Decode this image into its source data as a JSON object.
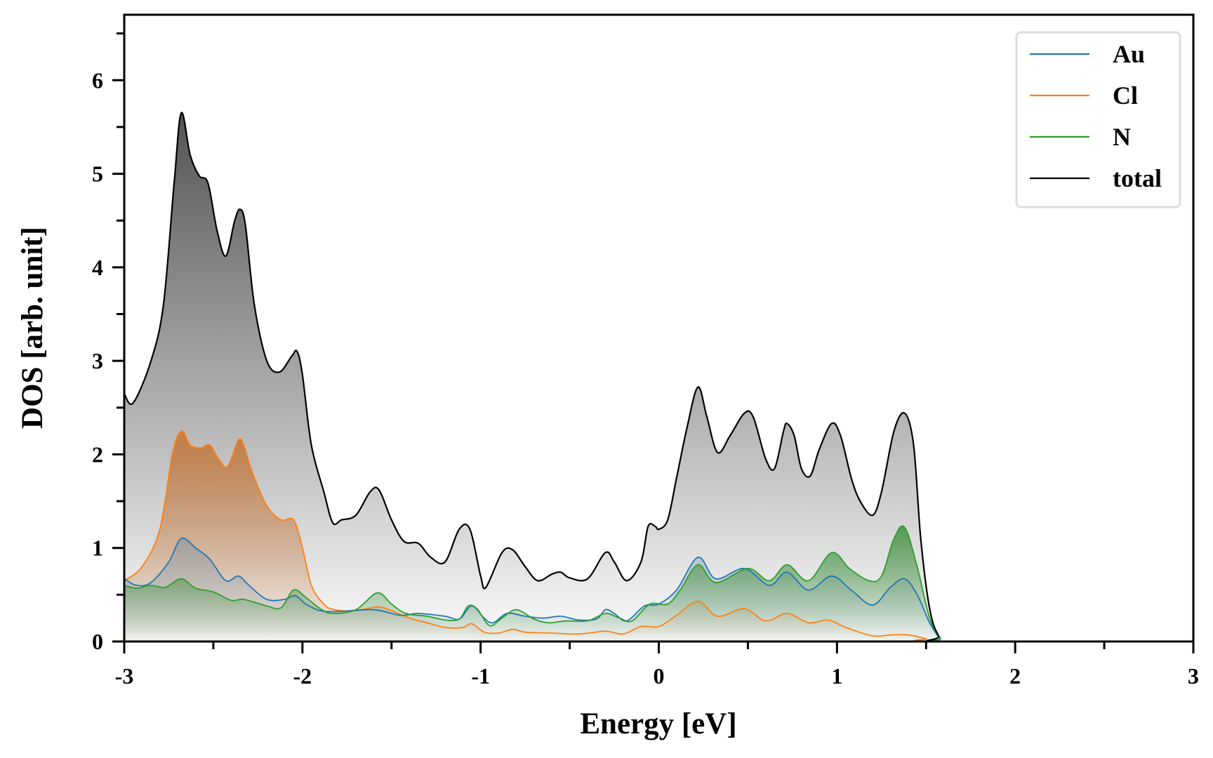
{
  "chart_data": {
    "type": "area",
    "title": "",
    "xlabel": "Energy [eV]",
    "ylabel": "DOS [arb. unit]",
    "xlim": [
      -3,
      3
    ],
    "ylim": [
      0,
      6.7
    ],
    "xticks": [
      -3,
      -2,
      -1,
      0,
      1,
      2,
      3
    ],
    "yticks": [
      0,
      1,
      2,
      3,
      4,
      5,
      6
    ],
    "legend_position": "top-right",
    "grid": false,
    "series": [
      {
        "name": "Au",
        "color": "#1f77b4",
        "fill": "#6f8fa5",
        "points": [
          [
            -3,
            0.67
          ],
          [
            -2.93,
            0.6
          ],
          [
            -2.85,
            0.63
          ],
          [
            -2.75,
            0.85
          ],
          [
            -2.68,
            1.1
          ],
          [
            -2.6,
            1.0
          ],
          [
            -2.52,
            0.88
          ],
          [
            -2.43,
            0.65
          ],
          [
            -2.36,
            0.7
          ],
          [
            -2.3,
            0.6
          ],
          [
            -2.2,
            0.45
          ],
          [
            -2.1,
            0.45
          ],
          [
            -2.04,
            0.49
          ],
          [
            -1.98,
            0.4
          ],
          [
            -1.9,
            0.33
          ],
          [
            -1.8,
            0.32
          ],
          [
            -1.6,
            0.34
          ],
          [
            -1.45,
            0.28
          ],
          [
            -1.35,
            0.3
          ],
          [
            -1.2,
            0.27
          ],
          [
            -1.12,
            0.24
          ],
          [
            -1.05,
            0.38
          ],
          [
            -0.98,
            0.25
          ],
          [
            -0.93,
            0.2
          ],
          [
            -0.85,
            0.3
          ],
          [
            -0.75,
            0.27
          ],
          [
            -0.65,
            0.25
          ],
          [
            -0.55,
            0.27
          ],
          [
            -0.45,
            0.23
          ],
          [
            -0.35,
            0.24
          ],
          [
            -0.3,
            0.34
          ],
          [
            -0.25,
            0.3
          ],
          [
            -0.18,
            0.22
          ],
          [
            -0.08,
            0.38
          ],
          [
            0,
            0.4
          ],
          [
            0.1,
            0.55
          ],
          [
            0.22,
            0.9
          ],
          [
            0.32,
            0.67
          ],
          [
            0.48,
            0.78
          ],
          [
            0.62,
            0.6
          ],
          [
            0.72,
            0.74
          ],
          [
            0.84,
            0.55
          ],
          [
            0.97,
            0.7
          ],
          [
            1.08,
            0.55
          ],
          [
            1.2,
            0.39
          ],
          [
            1.3,
            0.58
          ],
          [
            1.38,
            0.67
          ],
          [
            1.45,
            0.5
          ],
          [
            1.52,
            0.2
          ],
          [
            1.58,
            0.03
          ],
          [
            1.62,
            0
          ],
          [
            3,
            0
          ]
        ]
      },
      {
        "name": "Cl",
        "color": "#ff7f0e",
        "fill": "#c2763a",
        "points": [
          [
            -3,
            0.65
          ],
          [
            -2.9,
            0.8
          ],
          [
            -2.8,
            1.2
          ],
          [
            -2.73,
            2.0
          ],
          [
            -2.68,
            2.25
          ],
          [
            -2.63,
            2.1
          ],
          [
            -2.57,
            2.07
          ],
          [
            -2.52,
            2.1
          ],
          [
            -2.47,
            1.95
          ],
          [
            -2.42,
            1.87
          ],
          [
            -2.36,
            2.15
          ],
          [
            -2.33,
            2.1
          ],
          [
            -2.28,
            1.8
          ],
          [
            -2.2,
            1.45
          ],
          [
            -2.12,
            1.3
          ],
          [
            -2.05,
            1.3
          ],
          [
            -2.0,
            1.0
          ],
          [
            -1.95,
            0.6
          ],
          [
            -1.88,
            0.4
          ],
          [
            -1.82,
            0.34
          ],
          [
            -1.7,
            0.33
          ],
          [
            -1.58,
            0.37
          ],
          [
            -1.5,
            0.33
          ],
          [
            -1.4,
            0.25
          ],
          [
            -1.3,
            0.2
          ],
          [
            -1.2,
            0.15
          ],
          [
            -1.1,
            0.15
          ],
          [
            -1.05,
            0.19
          ],
          [
            -0.98,
            0.1
          ],
          [
            -0.9,
            0.09
          ],
          [
            -0.82,
            0.13
          ],
          [
            -0.75,
            0.1
          ],
          [
            -0.6,
            0.09
          ],
          [
            -0.45,
            0.08
          ],
          [
            -0.3,
            0.11
          ],
          [
            -0.2,
            0.08
          ],
          [
            -0.1,
            0.16
          ],
          [
            0,
            0.16
          ],
          [
            0.1,
            0.28
          ],
          [
            0.22,
            0.43
          ],
          [
            0.33,
            0.27
          ],
          [
            0.48,
            0.35
          ],
          [
            0.6,
            0.22
          ],
          [
            0.72,
            0.3
          ],
          [
            0.84,
            0.2
          ],
          [
            0.95,
            0.23
          ],
          [
            1.05,
            0.15
          ],
          [
            1.2,
            0.06
          ],
          [
            1.3,
            0.07
          ],
          [
            1.4,
            0.07
          ],
          [
            1.5,
            0.03
          ],
          [
            1.55,
            0
          ],
          [
            3,
            0
          ]
        ]
      },
      {
        "name": "N",
        "color": "#2ca02c",
        "fill": "#3f8f3f",
        "points": [
          [
            -3,
            0.6
          ],
          [
            -2.93,
            0.57
          ],
          [
            -2.85,
            0.6
          ],
          [
            -2.77,
            0.58
          ],
          [
            -2.68,
            0.67
          ],
          [
            -2.6,
            0.57
          ],
          [
            -2.5,
            0.53
          ],
          [
            -2.4,
            0.44
          ],
          [
            -2.33,
            0.45
          ],
          [
            -2.2,
            0.38
          ],
          [
            -2.12,
            0.36
          ],
          [
            -2.05,
            0.55
          ],
          [
            -1.98,
            0.47
          ],
          [
            -1.9,
            0.35
          ],
          [
            -1.83,
            0.3
          ],
          [
            -1.7,
            0.34
          ],
          [
            -1.58,
            0.52
          ],
          [
            -1.5,
            0.4
          ],
          [
            -1.42,
            0.3
          ],
          [
            -1.3,
            0.27
          ],
          [
            -1.2,
            0.23
          ],
          [
            -1.12,
            0.24
          ],
          [
            -1.07,
            0.38
          ],
          [
            -1.02,
            0.35
          ],
          [
            -0.95,
            0.17
          ],
          [
            -0.88,
            0.25
          ],
          [
            -0.8,
            0.34
          ],
          [
            -0.7,
            0.24
          ],
          [
            -0.62,
            0.2
          ],
          [
            -0.52,
            0.22
          ],
          [
            -0.4,
            0.22
          ],
          [
            -0.3,
            0.3
          ],
          [
            -0.22,
            0.25
          ],
          [
            -0.15,
            0.22
          ],
          [
            -0.05,
            0.4
          ],
          [
            0.05,
            0.4
          ],
          [
            0.12,
            0.55
          ],
          [
            0.22,
            0.82
          ],
          [
            0.32,
            0.63
          ],
          [
            0.5,
            0.78
          ],
          [
            0.62,
            0.65
          ],
          [
            0.72,
            0.82
          ],
          [
            0.84,
            0.65
          ],
          [
            0.97,
            0.95
          ],
          [
            1.07,
            0.78
          ],
          [
            1.18,
            0.65
          ],
          [
            1.25,
            0.7
          ],
          [
            1.32,
            1.1
          ],
          [
            1.38,
            1.22
          ],
          [
            1.45,
            0.8
          ],
          [
            1.52,
            0.25
          ],
          [
            1.58,
            0.04
          ],
          [
            1.63,
            0
          ],
          [
            3,
            0
          ]
        ]
      },
      {
        "name": "total",
        "color": "#000000",
        "fill": "#4a4a4a",
        "points": [
          [
            -3,
            2.65
          ],
          [
            -2.95,
            2.55
          ],
          [
            -2.85,
            3.0
          ],
          [
            -2.78,
            3.6
          ],
          [
            -2.72,
            4.9
          ],
          [
            -2.68,
            5.65
          ],
          [
            -2.63,
            5.2
          ],
          [
            -2.58,
            4.98
          ],
          [
            -2.53,
            4.9
          ],
          [
            -2.48,
            4.4
          ],
          [
            -2.43,
            4.12
          ],
          [
            -2.38,
            4.5
          ],
          [
            -2.35,
            4.62
          ],
          [
            -2.32,
            4.45
          ],
          [
            -2.27,
            3.6
          ],
          [
            -2.2,
            3.0
          ],
          [
            -2.13,
            2.88
          ],
          [
            -2.06,
            3.05
          ],
          [
            -2.03,
            3.1
          ],
          [
            -2.0,
            2.85
          ],
          [
            -1.95,
            2.1
          ],
          [
            -1.88,
            1.6
          ],
          [
            -1.83,
            1.27
          ],
          [
            -1.78,
            1.3
          ],
          [
            -1.7,
            1.35
          ],
          [
            -1.62,
            1.6
          ],
          [
            -1.57,
            1.62
          ],
          [
            -1.5,
            1.3
          ],
          [
            -1.43,
            1.07
          ],
          [
            -1.35,
            1.05
          ],
          [
            -1.28,
            0.9
          ],
          [
            -1.2,
            0.85
          ],
          [
            -1.12,
            1.2
          ],
          [
            -1.06,
            1.2
          ],
          [
            -1.0,
            0.7
          ],
          [
            -0.97,
            0.58
          ],
          [
            -0.88,
            0.95
          ],
          [
            -0.82,
            0.98
          ],
          [
            -0.75,
            0.8
          ],
          [
            -0.68,
            0.65
          ],
          [
            -0.6,
            0.72
          ],
          [
            -0.55,
            0.74
          ],
          [
            -0.5,
            0.68
          ],
          [
            -0.4,
            0.67
          ],
          [
            -0.3,
            0.95
          ],
          [
            -0.25,
            0.85
          ],
          [
            -0.18,
            0.65
          ],
          [
            -0.1,
            0.85
          ],
          [
            -0.06,
            1.23
          ],
          [
            -0.02,
            1.23
          ],
          [
            0,
            1.2
          ],
          [
            0.05,
            1.3
          ],
          [
            0.1,
            1.75
          ],
          [
            0.16,
            2.3
          ],
          [
            0.22,
            2.72
          ],
          [
            0.27,
            2.4
          ],
          [
            0.33,
            2.02
          ],
          [
            0.4,
            2.2
          ],
          [
            0.48,
            2.44
          ],
          [
            0.53,
            2.4
          ],
          [
            0.6,
            1.95
          ],
          [
            0.65,
            1.85
          ],
          [
            0.7,
            2.25
          ],
          [
            0.72,
            2.33
          ],
          [
            0.76,
            2.2
          ],
          [
            0.8,
            1.85
          ],
          [
            0.85,
            1.77
          ],
          [
            0.9,
            2.05
          ],
          [
            0.97,
            2.33
          ],
          [
            1.02,
            2.2
          ],
          [
            1.08,
            1.75
          ],
          [
            1.13,
            1.5
          ],
          [
            1.2,
            1.35
          ],
          [
            1.25,
            1.6
          ],
          [
            1.32,
            2.25
          ],
          [
            1.38,
            2.44
          ],
          [
            1.43,
            2.1
          ],
          [
            1.47,
            1.1
          ],
          [
            1.52,
            0.35
          ],
          [
            1.57,
            0.06
          ],
          [
            1.62,
            0
          ],
          [
            3,
            0
          ]
        ]
      }
    ]
  }
}
